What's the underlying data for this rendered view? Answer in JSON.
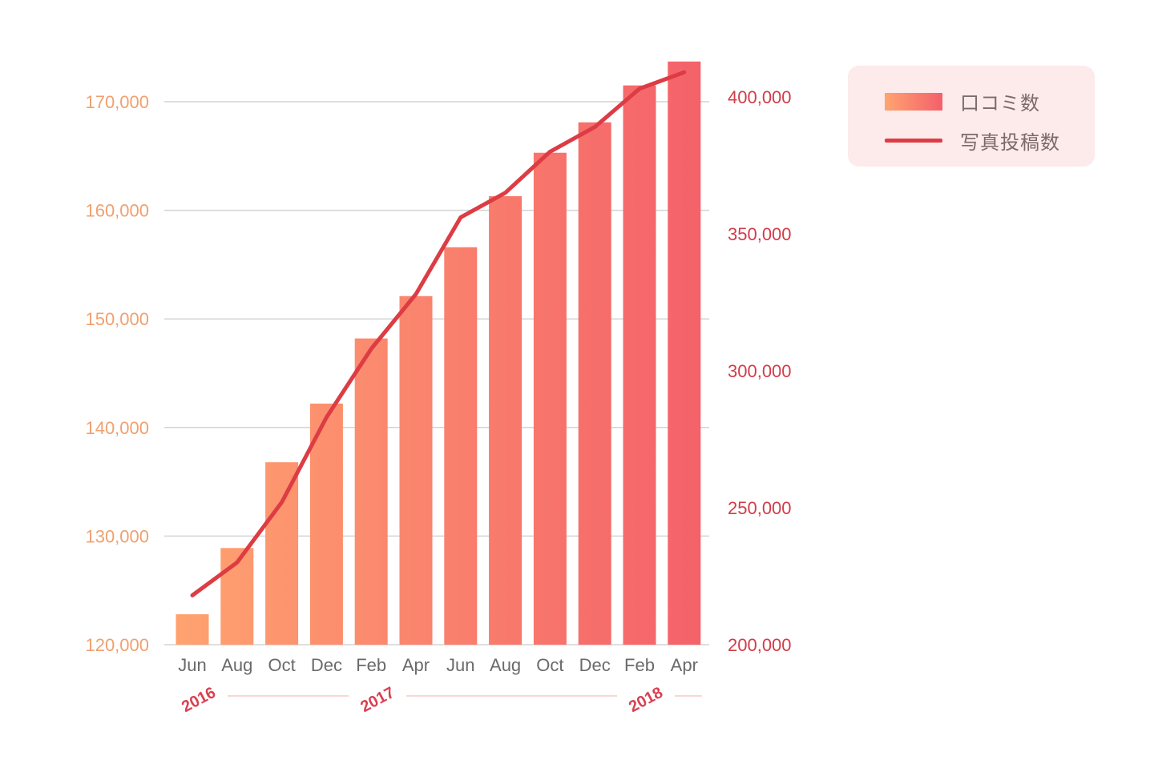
{
  "chart_data": {
    "type": "bar+line",
    "title": "",
    "categories": [
      "Jun",
      "Aug",
      "Oct",
      "Dec",
      "Feb",
      "Apr",
      "Jun",
      "Aug",
      "Oct",
      "Dec",
      "Feb",
      "Apr"
    ],
    "year_labels": [
      {
        "label": "2016",
        "start_index": 0,
        "end_index": 3
      },
      {
        "label": "2017",
        "start_index": 4,
        "end_index": 9
      },
      {
        "label": "2018",
        "start_index": 10,
        "end_index": 11
      }
    ],
    "series": [
      {
        "name": "口コミ数",
        "type": "bar",
        "axis": "left",
        "values": [
          122800,
          128900,
          136800,
          142200,
          148200,
          152100,
          156600,
          161300,
          165300,
          168100,
          171500,
          173700
        ]
      },
      {
        "name": "写真投稿数",
        "type": "line",
        "axis": "right",
        "values": [
          218000,
          230000,
          252000,
          283000,
          308000,
          328000,
          356000,
          365000,
          380000,
          389000,
          403000,
          409000
        ]
      }
    ],
    "y_left": {
      "min": 120000,
      "max": 170000,
      "ticks": [
        "120,000",
        "130,000",
        "140,000",
        "150,000",
        "160,000",
        "170,000"
      ]
    },
    "y_right": {
      "min": 200000,
      "max": 400000,
      "ticks": [
        "200,000",
        "250,000",
        "300,000",
        "350,000",
        "400,000"
      ]
    },
    "grid": true,
    "legend_position": "top-right",
    "colors": {
      "bar_start": "#ffa470",
      "bar_end": "#f4606a",
      "line": "#dd3c44",
      "left_ticks": "#f0a070",
      "right_ticks": "#d23c48",
      "gridline": "#d4d4d4",
      "legend_bg": "#fdeaea",
      "year_text": "#d94050",
      "year_rule": "#f9d6d6"
    }
  },
  "legend": {
    "bar_label": "口コミ数",
    "line_label": "写真投稿数"
  }
}
